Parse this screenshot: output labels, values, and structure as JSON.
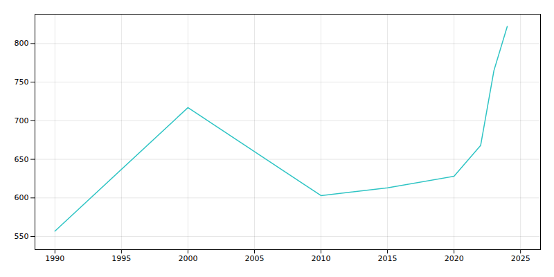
{
  "chart_data": {
    "type": "line",
    "x": [
      1990,
      2000,
      2010,
      2015,
      2020,
      2022,
      2023,
      2024
    ],
    "values": [
      557,
      717,
      603,
      613,
      628,
      668,
      765,
      822
    ],
    "color": "#2ec4c4",
    "xlim": [
      1988.5,
      2026.5
    ],
    "ylim": [
      533,
      838
    ],
    "xticks": [
      1990,
      1995,
      2000,
      2005,
      2010,
      2015,
      2020,
      2025
    ],
    "yticks": [
      550,
      600,
      650,
      700,
      750,
      800
    ],
    "grid": true
  }
}
